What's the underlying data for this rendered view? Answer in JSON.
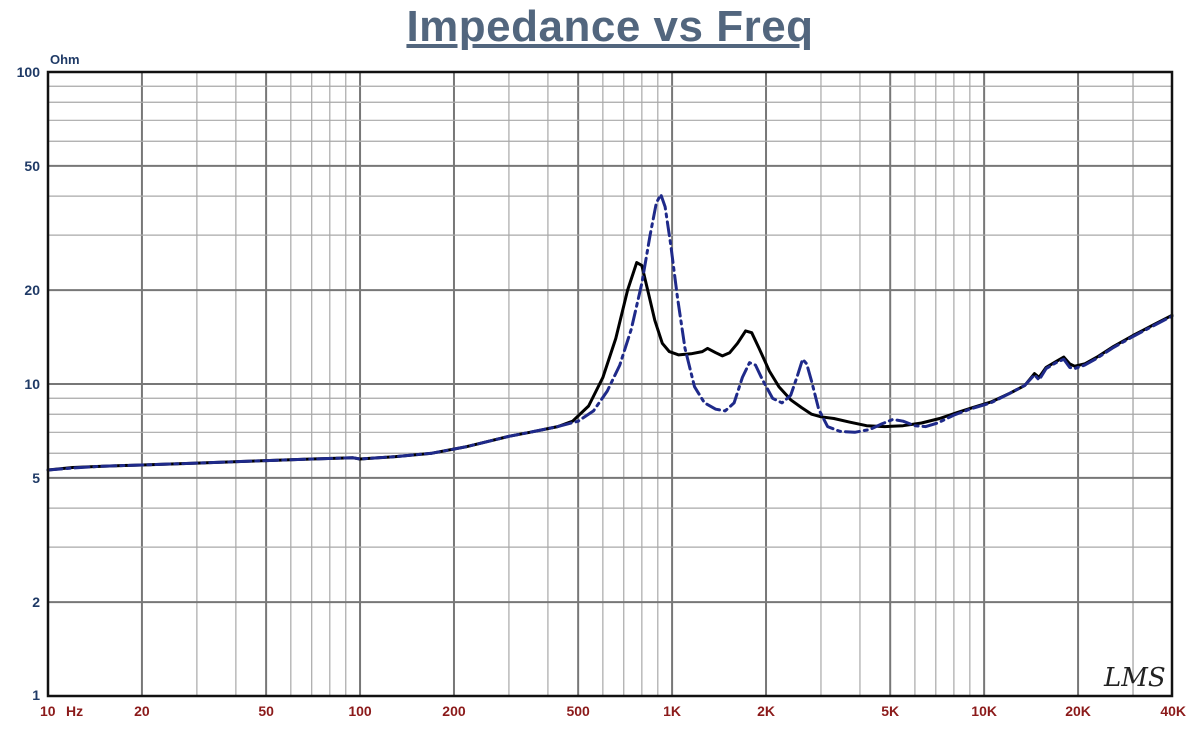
{
  "chart_data": {
    "type": "line",
    "title": "Impedance vs Freq",
    "ylabel": "Ohm",
    "xlabel": "",
    "x_scale": "log",
    "y_scale": "log",
    "xlim": [
      10,
      40000
    ],
    "ylim": [
      1,
      100
    ],
    "grid": true,
    "x_ticks": [
      {
        "value": 10,
        "label": "10"
      },
      {
        "value": 20,
        "label": "20"
      },
      {
        "value": 50,
        "label": "50"
      },
      {
        "value": 100,
        "label": "100"
      },
      {
        "value": 200,
        "label": "200"
      },
      {
        "value": 500,
        "label": "500"
      },
      {
        "value": 1000,
        "label": "1K"
      },
      {
        "value": 2000,
        "label": "2K"
      },
      {
        "value": 5000,
        "label": "5K"
      },
      {
        "value": 10000,
        "label": "10K"
      },
      {
        "value": 20000,
        "label": "20K"
      },
      {
        "value": 40000,
        "label": "40K"
      }
    ],
    "x_unit_label": "Hz",
    "y_ticks": [
      {
        "value": 1,
        "label": "1"
      },
      {
        "value": 2,
        "label": "2"
      },
      {
        "value": 5,
        "label": "5"
      },
      {
        "value": 10,
        "label": "10"
      },
      {
        "value": 20,
        "label": "20"
      },
      {
        "value": 50,
        "label": "50"
      },
      {
        "value": 100,
        "label": "100"
      }
    ],
    "watermark": "LMS",
    "series": [
      {
        "color": "#000000",
        "style": "solid",
        "points": [
          [
            10,
            5.3
          ],
          [
            12,
            5.4
          ],
          [
            15,
            5.45
          ],
          [
            20,
            5.5
          ],
          [
            30,
            5.58
          ],
          [
            50,
            5.68
          ],
          [
            70,
            5.75
          ],
          [
            95,
            5.8
          ],
          [
            100,
            5.75
          ],
          [
            130,
            5.85
          ],
          [
            170,
            6.0
          ],
          [
            220,
            6.3
          ],
          [
            300,
            6.8
          ],
          [
            350,
            7.0
          ],
          [
            430,
            7.3
          ],
          [
            480,
            7.6
          ],
          [
            540,
            8.5
          ],
          [
            600,
            10.5
          ],
          [
            660,
            14.0
          ],
          [
            720,
            20.0
          ],
          [
            770,
            24.5
          ],
          [
            800,
            24.0
          ],
          [
            840,
            19.5
          ],
          [
            880,
            16.0
          ],
          [
            930,
            13.5
          ],
          [
            980,
            12.7
          ],
          [
            1050,
            12.4
          ],
          [
            1150,
            12.5
          ],
          [
            1250,
            12.7
          ],
          [
            1300,
            13.0
          ],
          [
            1380,
            12.6
          ],
          [
            1450,
            12.3
          ],
          [
            1530,
            12.6
          ],
          [
            1620,
            13.5
          ],
          [
            1720,
            14.8
          ],
          [
            1800,
            14.6
          ],
          [
            1900,
            13.0
          ],
          [
            2050,
            11.0
          ],
          [
            2200,
            9.8
          ],
          [
            2400,
            8.9
          ],
          [
            2600,
            8.4
          ],
          [
            2800,
            8.0
          ],
          [
            3000,
            7.85
          ],
          [
            3300,
            7.75
          ],
          [
            3700,
            7.55
          ],
          [
            4200,
            7.35
          ],
          [
            4800,
            7.3
          ],
          [
            5500,
            7.35
          ],
          [
            6300,
            7.5
          ],
          [
            7200,
            7.75
          ],
          [
            8200,
            8.1
          ],
          [
            9200,
            8.4
          ],
          [
            10500,
            8.75
          ],
          [
            12000,
            9.3
          ],
          [
            13500,
            9.9
          ],
          [
            14500,
            10.8
          ],
          [
            15000,
            10.5
          ],
          [
            15800,
            11.3
          ],
          [
            17000,
            11.8
          ],
          [
            18000,
            12.2
          ],
          [
            18800,
            11.6
          ],
          [
            19500,
            11.4
          ],
          [
            21000,
            11.6
          ],
          [
            23000,
            12.2
          ],
          [
            26000,
            13.2
          ],
          [
            30000,
            14.3
          ],
          [
            35000,
            15.5
          ],
          [
            40000,
            16.6
          ]
        ]
      },
      {
        "color": "#1f2a8a",
        "style": "dashed",
        "points": [
          [
            10,
            5.3
          ],
          [
            12,
            5.38
          ],
          [
            15,
            5.45
          ],
          [
            20,
            5.5
          ],
          [
            30,
            5.58
          ],
          [
            50,
            5.68
          ],
          [
            70,
            5.75
          ],
          [
            95,
            5.8
          ],
          [
            100,
            5.75
          ],
          [
            130,
            5.85
          ],
          [
            170,
            6.0
          ],
          [
            220,
            6.3
          ],
          [
            300,
            6.8
          ],
          [
            350,
            7.0
          ],
          [
            430,
            7.3
          ],
          [
            500,
            7.6
          ],
          [
            560,
            8.2
          ],
          [
            620,
            9.5
          ],
          [
            680,
            11.5
          ],
          [
            740,
            15.0
          ],
          [
            800,
            21.0
          ],
          [
            850,
            30.0
          ],
          [
            890,
            38.0
          ],
          [
            920,
            40.5
          ],
          [
            950,
            37.0
          ],
          [
            990,
            28.0
          ],
          [
            1040,
            19.0
          ],
          [
            1100,
            13.0
          ],
          [
            1180,
            9.8
          ],
          [
            1270,
            8.7
          ],
          [
            1380,
            8.3
          ],
          [
            1480,
            8.2
          ],
          [
            1580,
            8.7
          ],
          [
            1680,
            10.5
          ],
          [
            1770,
            11.7
          ],
          [
            1850,
            11.5
          ],
          [
            1950,
            10.3
          ],
          [
            2100,
            9.0
          ],
          [
            2250,
            8.7
          ],
          [
            2400,
            9.2
          ],
          [
            2520,
            10.6
          ],
          [
            2620,
            12.0
          ],
          [
            2700,
            11.6
          ],
          [
            2800,
            10.2
          ],
          [
            2950,
            8.3
          ],
          [
            3150,
            7.3
          ],
          [
            3450,
            7.05
          ],
          [
            3850,
            7.0
          ],
          [
            4300,
            7.15
          ],
          [
            4700,
            7.45
          ],
          [
            5100,
            7.7
          ],
          [
            5500,
            7.6
          ],
          [
            6000,
            7.35
          ],
          [
            6500,
            7.3
          ],
          [
            7100,
            7.5
          ],
          [
            8000,
            7.95
          ],
          [
            9000,
            8.3
          ],
          [
            10500,
            8.7
          ],
          [
            12000,
            9.3
          ],
          [
            13500,
            9.9
          ],
          [
            14500,
            10.7
          ],
          [
            15000,
            10.3
          ],
          [
            15800,
            11.2
          ],
          [
            17000,
            11.7
          ],
          [
            18000,
            12.0
          ],
          [
            18800,
            11.3
          ],
          [
            19500,
            11.2
          ],
          [
            21000,
            11.5
          ],
          [
            23000,
            12.1
          ],
          [
            26000,
            13.1
          ],
          [
            30000,
            14.2
          ],
          [
            35000,
            15.4
          ],
          [
            40000,
            16.5
          ]
        ]
      }
    ]
  }
}
